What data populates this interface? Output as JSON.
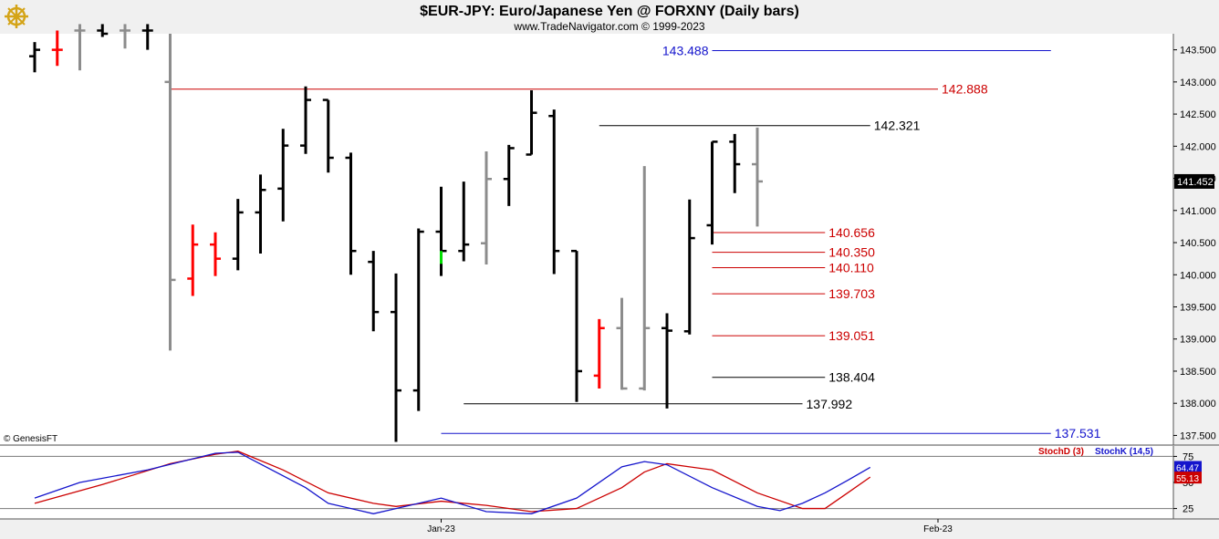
{
  "header": {
    "title": "$EUR-JPY:  Euro/Japanese Yen @ FORXNY  (Daily bars)",
    "subtitle": "www.TradeNavigator.com © 1999-2023"
  },
  "watermark": "© GenesisFT",
  "logo_icon": "ship-wheel-logo-icon",
  "chart_data": {
    "type": "ohlc",
    "price_axis": {
      "ylim": [
        137.35,
        143.75
      ],
      "ticks": [
        "143.500",
        "143.000",
        "142.500",
        "142.000",
        "141.500",
        "141.000",
        "140.500",
        "140.000",
        "139.500",
        "139.000",
        "138.500",
        "138.000",
        "137.500"
      ],
      "last_price": "141.452"
    },
    "x_labels": [
      {
        "label": "Jan-23",
        "bar": 18
      },
      {
        "label": "Feb-23",
        "bar": 40
      }
    ],
    "colors": {
      "up": "#000000",
      "down": "#ff0000",
      "neutral": "#8c8c8c",
      "signal": "#00dd00"
    },
    "bars": [
      {
        "o": 143.4,
        "h": 143.62,
        "l": 143.15,
        "c": 143.5,
        "color": "black"
      },
      {
        "o": 143.5,
        "h": 143.8,
        "l": 143.25,
        "c": 143.5,
        "color": "red"
      },
      {
        "o": 143.8,
        "h": 143.9,
        "l": 143.18,
        "c": 143.8,
        "color": "gray"
      },
      {
        "o": 143.8,
        "h": 143.9,
        "l": 143.7,
        "c": 143.75,
        "color": "black"
      },
      {
        "o": 143.8,
        "h": 143.9,
        "l": 143.52,
        "c": 143.8,
        "color": "gray"
      },
      {
        "o": 143.8,
        "h": 143.9,
        "l": 143.5,
        "c": 143.8,
        "color": "black"
      },
      {
        "o": 143.0,
        "h": 143.75,
        "l": 138.82,
        "c": 139.92,
        "color": "gray"
      },
      {
        "o": 139.94,
        "h": 140.78,
        "l": 139.67,
        "c": 140.47,
        "color": "red"
      },
      {
        "o": 140.47,
        "h": 140.66,
        "l": 139.98,
        "c": 140.25,
        "color": "red"
      },
      {
        "o": 140.25,
        "h": 141.18,
        "l": 140.07,
        "c": 140.97,
        "color": "black"
      },
      {
        "o": 140.97,
        "h": 141.56,
        "l": 140.33,
        "c": 141.32,
        "color": "black"
      },
      {
        "o": 141.34,
        "h": 142.27,
        "l": 140.83,
        "c": 142.01,
        "color": "black"
      },
      {
        "o": 142.01,
        "h": 142.93,
        "l": 141.88,
        "c": 142.72,
        "color": "black"
      },
      {
        "o": 142.72,
        "h": 142.72,
        "l": 141.59,
        "c": 141.82,
        "color": "black"
      },
      {
        "o": 141.82,
        "h": 141.9,
        "l": 140.0,
        "c": 140.37,
        "color": "black"
      },
      {
        "o": 140.2,
        "h": 140.37,
        "l": 139.12,
        "c": 139.42,
        "color": "black"
      },
      {
        "o": 139.42,
        "h": 140.02,
        "l": 137.4,
        "c": 138.2,
        "color": "black"
      },
      {
        "o": 138.2,
        "h": 140.72,
        "l": 137.88,
        "c": 140.67,
        "color": "black"
      },
      {
        "o": 140.67,
        "h": 141.37,
        "l": 139.98,
        "c": 140.37,
        "color": "black"
      },
      {
        "o": 140.37,
        "h": 141.45,
        "l": 140.21,
        "c": 140.47,
        "color": "black"
      },
      {
        "o": 140.49,
        "h": 141.92,
        "l": 140.16,
        "c": 141.49,
        "color": "gray"
      },
      {
        "o": 141.49,
        "h": 142.02,
        "l": 141.07,
        "c": 141.97,
        "color": "black"
      },
      {
        "o": 141.87,
        "h": 142.87,
        "l": 141.87,
        "c": 142.52,
        "color": "black"
      },
      {
        "o": 142.47,
        "h": 142.57,
        "l": 140.01,
        "c": 140.37,
        "color": "black"
      },
      {
        "o": 140.37,
        "h": 140.37,
        "l": 138.02,
        "c": 138.5,
        "color": "black"
      },
      {
        "o": 138.43,
        "h": 139.31,
        "l": 138.23,
        "c": 139.17,
        "color": "red"
      },
      {
        "o": 139.17,
        "h": 139.64,
        "l": 138.21,
        "c": 138.23,
        "color": "gray"
      },
      {
        "o": 138.23,
        "h": 141.69,
        "l": 138.2,
        "c": 139.17,
        "color": "gray"
      },
      {
        "o": 139.17,
        "h": 139.4,
        "l": 137.92,
        "c": 139.13,
        "color": "black"
      },
      {
        "o": 139.12,
        "h": 141.17,
        "l": 139.07,
        "c": 140.57,
        "color": "black"
      },
      {
        "o": 140.77,
        "h": 142.07,
        "l": 140.47,
        "c": 142.07,
        "color": "black"
      },
      {
        "o": 142.07,
        "h": 142.19,
        "l": 141.27,
        "c": 141.72,
        "color": "black"
      },
      {
        "o": 141.72,
        "h": 142.29,
        "l": 140.75,
        "c": 141.452,
        "color": "gray"
      }
    ],
    "signal_bar": {
      "bar": 18,
      "from": 140.17,
      "to": 140.37
    },
    "levels": [
      {
        "value": 143.488,
        "label": "143.488",
        "color": "#1414cc",
        "from_bar": 30,
        "to_bar": 45,
        "label_side": "left"
      },
      {
        "value": 142.888,
        "label": "142.888",
        "color": "#cc0000",
        "from_bar": 6,
        "to_bar": 40,
        "label_side": "right"
      },
      {
        "value": 142.321,
        "label": "142.321",
        "color": "#000000",
        "from_bar": 25,
        "to_bar": 37,
        "label_side": "right"
      },
      {
        "value": 140.656,
        "label": "140.656",
        "color": "#cc0000",
        "from_bar": 30,
        "to_bar": 35,
        "label_side": "right"
      },
      {
        "value": 140.35,
        "label": "140.350",
        "color": "#cc0000",
        "from_bar": 30,
        "to_bar": 35,
        "label_side": "right"
      },
      {
        "value": 140.11,
        "label": "140.110",
        "color": "#cc0000",
        "from_bar": 30,
        "to_bar": 35,
        "label_side": "right"
      },
      {
        "value": 139.703,
        "label": "139.703",
        "color": "#cc0000",
        "from_bar": 30,
        "to_bar": 35,
        "label_side": "right"
      },
      {
        "value": 139.051,
        "label": "139.051",
        "color": "#cc0000",
        "from_bar": 30,
        "to_bar": 35,
        "label_side": "right"
      },
      {
        "value": 138.404,
        "label": "138.404",
        "color": "#000000",
        "from_bar": 30,
        "to_bar": 35,
        "label_side": "right"
      },
      {
        "value": 137.992,
        "label": "137.992",
        "color": "#000000",
        "from_bar": 19,
        "to_bar": 34,
        "label_side": "right"
      },
      {
        "value": 137.531,
        "label": "137.531",
        "color": "#1414cc",
        "from_bar": 18,
        "to_bar": 45,
        "label_side": "right"
      }
    ],
    "stochastic": {
      "ylim": [
        15,
        85
      ],
      "ticks": [
        "75",
        "50",
        "25"
      ],
      "legend": [
        {
          "name": "StochD (3)",
          "color": "#cc0000"
        },
        {
          "name": "StochK (14,5)",
          "color": "#1414cc"
        }
      ],
      "k_last": "64.47",
      "d_last": "55.13",
      "k": [
        [
          0,
          35
        ],
        [
          2,
          50
        ],
        [
          5,
          62
        ],
        [
          8,
          78
        ],
        [
          9,
          79
        ],
        [
          12,
          45
        ],
        [
          13,
          30
        ],
        [
          15,
          20
        ],
        [
          16,
          25
        ],
        [
          18,
          35
        ],
        [
          20,
          22
        ],
        [
          22,
          20
        ],
        [
          24,
          35
        ],
        [
          26,
          65
        ],
        [
          27,
          70
        ],
        [
          28,
          67
        ],
        [
          30,
          45
        ],
        [
          32,
          27
        ],
        [
          33,
          23
        ],
        [
          34,
          30
        ],
        [
          35,
          40
        ],
        [
          36,
          52
        ],
        [
          37,
          64.47
        ]
      ],
      "d": [
        [
          0,
          30
        ],
        [
          3,
          48
        ],
        [
          6,
          68
        ],
        [
          8,
          77
        ],
        [
          9,
          80
        ],
        [
          11,
          62
        ],
        [
          13,
          40
        ],
        [
          15,
          30
        ],
        [
          16,
          27
        ],
        [
          18,
          32
        ],
        [
          20,
          28
        ],
        [
          22,
          22
        ],
        [
          24,
          25
        ],
        [
          26,
          45
        ],
        [
          27,
          60
        ],
        [
          28,
          68
        ],
        [
          30,
          62
        ],
        [
          32,
          40
        ],
        [
          34,
          25
        ],
        [
          35,
          25
        ],
        [
          36,
          40
        ],
        [
          37,
          55.13
        ]
      ]
    }
  }
}
